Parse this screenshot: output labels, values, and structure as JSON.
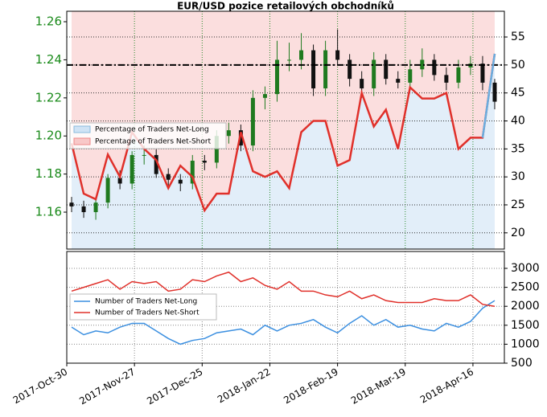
{
  "chart_data": [
    {
      "type": "candlestick",
      "title": "EUR/USD pozice retailových obchodníků",
      "x": [
        "2017-11-01",
        "2017-11-06",
        "2017-11-11",
        "2017-11-16",
        "2017-11-21",
        "2017-11-26",
        "2017-12-01",
        "2017-12-06",
        "2017-12-11",
        "2017-12-16",
        "2017-12-21",
        "2017-12-26",
        "2017-12-31",
        "2018-01-05",
        "2018-01-10",
        "2018-01-15",
        "2018-01-20",
        "2018-01-25",
        "2018-01-30",
        "2018-02-04",
        "2018-02-09",
        "2018-02-14",
        "2018-02-19",
        "2018-02-24",
        "2018-03-01",
        "2018-03-06",
        "2018-03-11",
        "2018-03-16",
        "2018-03-21",
        "2018-03-26",
        "2018-03-31",
        "2018-04-05",
        "2018-04-10",
        "2018-04-15",
        "2018-04-20",
        "2018-04-25"
      ],
      "open": [
        1.165,
        1.163,
        1.16,
        1.165,
        1.178,
        1.175,
        1.19,
        1.19,
        1.18,
        1.177,
        1.175,
        1.187,
        1.186,
        1.2,
        1.203,
        1.195,
        1.22,
        1.222,
        1.24,
        1.24,
        1.245,
        1.225,
        1.245,
        1.24,
        1.23,
        1.225,
        1.24,
        1.23,
        1.228,
        1.235,
        1.24,
        1.232,
        1.228,
        1.236,
        1.238,
        1.228
      ],
      "high": [
        1.168,
        1.166,
        1.167,
        1.18,
        1.182,
        1.192,
        1.195,
        1.193,
        1.183,
        1.18,
        1.19,
        1.19,
        1.203,
        1.207,
        1.206,
        1.224,
        1.226,
        1.25,
        1.249,
        1.254,
        1.248,
        1.25,
        1.256,
        1.243,
        1.234,
        1.244,
        1.243,
        1.234,
        1.24,
        1.246,
        1.243,
        1.236,
        1.24,
        1.242,
        1.242,
        1.23
      ],
      "low": [
        1.16,
        1.157,
        1.156,
        1.162,
        1.172,
        1.172,
        1.185,
        1.178,
        1.174,
        1.171,
        1.172,
        1.182,
        1.183,
        1.196,
        1.192,
        1.192,
        1.214,
        1.218,
        1.234,
        1.235,
        1.221,
        1.221,
        1.237,
        1.226,
        1.22,
        1.221,
        1.227,
        1.225,
        1.224,
        1.231,
        1.229,
        1.224,
        1.225,
        1.232,
        1.224,
        1.214
      ],
      "close": [
        1.163,
        1.16,
        1.165,
        1.178,
        1.175,
        1.19,
        1.19,
        1.18,
        1.177,
        1.175,
        1.187,
        1.186,
        1.2,
        1.203,
        1.195,
        1.22,
        1.222,
        1.24,
        1.24,
        1.245,
        1.225,
        1.245,
        1.24,
        1.23,
        1.225,
        1.24,
        1.23,
        1.228,
        1.235,
        1.24,
        1.232,
        1.228,
        1.236,
        1.238,
        1.228,
        1.218
      ],
      "up_color": "#1f7a1f",
      "down_color": "#111111",
      "ylim": [
        1.1406,
        1.2655
      ],
      "yticks": [
        1.16,
        1.18,
        {
          "value": 1.2,
          "label": "1.20"
        },
        1.22,
        1.24,
        1.26
      ],
      "y2lim": [
        17.1,
        59.6
      ],
      "y2ticks": [
        20,
        25,
        30,
        35,
        40,
        45,
        50,
        55
      ],
      "hline": 50,
      "series": [
        {
          "axis": "y2",
          "color_below": "#e0302a",
          "color_above": "#6aaee0",
          "values": [
            36,
            27,
            26,
            34,
            30,
            38,
            35,
            33,
            28,
            32,
            30,
            24,
            27,
            27,
            38,
            31,
            30,
            31,
            28,
            38,
            40,
            40,
            32,
            33,
            45,
            39,
            42,
            35,
            46,
            44,
            44,
            45,
            35,
            37,
            37,
            52
          ]
        }
      ],
      "legend": [
        {
          "label": "Percentage of Traders Net-Long",
          "color": "#cfe3f5"
        },
        {
          "label": "Percentage of Traders Net-Short",
          "color": "#f8c8c8"
        }
      ]
    },
    {
      "type": "line",
      "x": [
        "2017-11-01",
        "2017-11-06",
        "2017-11-11",
        "2017-11-16",
        "2017-11-21",
        "2017-11-26",
        "2017-12-01",
        "2017-12-06",
        "2017-12-11",
        "2017-12-16",
        "2017-12-21",
        "2017-12-26",
        "2017-12-31",
        "2018-01-05",
        "2018-01-10",
        "2018-01-15",
        "2018-01-20",
        "2018-01-25",
        "2018-01-30",
        "2018-02-04",
        "2018-02-09",
        "2018-02-14",
        "2018-02-19",
        "2018-02-24",
        "2018-03-01",
        "2018-03-06",
        "2018-03-11",
        "2018-03-16",
        "2018-03-21",
        "2018-03-26",
        "2018-03-31",
        "2018-04-05",
        "2018-04-10",
        "2018-04-15",
        "2018-04-20",
        "2018-04-25"
      ],
      "xlim": [
        "2017-10-30",
        "2018-04-29"
      ],
      "xticks": [
        {
          "value": "2017-10-30",
          "label": "2017-Oct-30"
        },
        {
          "value": "2017-11-27",
          "label": "2017-Nov-27"
        },
        {
          "value": "2017-12-25",
          "label": "2017-Dec-25"
        },
        {
          "value": "2018-01-22",
          "label": "2018-Jan-22"
        },
        {
          "value": "2018-02-19",
          "label": "2018-Feb-19"
        },
        {
          "value": "2018-03-19",
          "label": "2018-Mar-19"
        },
        {
          "value": "2018-04-16",
          "label": "2018-Apr-16"
        }
      ],
      "y2lim": [
        500,
        3445
      ],
      "y2ticks": [
        500,
        1000,
        1500,
        2000,
        2500,
        3000
      ],
      "series": [
        {
          "name": "Number of Traders Net-Long",
          "color": "#3b8fe0",
          "axis": "y2",
          "values": [
            1450,
            1250,
            1350,
            1300,
            1450,
            1550,
            1550,
            1350,
            1150,
            1000,
            1100,
            1150,
            1300,
            1350,
            1400,
            1250,
            1500,
            1350,
            1500,
            1550,
            1650,
            1450,
            1300,
            1550,
            1750,
            1500,
            1650,
            1450,
            1500,
            1400,
            1350,
            1550,
            1450,
            1600,
            1950,
            2150
          ]
        },
        {
          "name": "Number of Traders Net-Short",
          "color": "#e0302a",
          "axis": "y2",
          "values": [
            2400,
            2500,
            2600,
            2700,
            2450,
            2650,
            2600,
            2650,
            2400,
            2450,
            2700,
            2650,
            2800,
            2900,
            2650,
            2750,
            2550,
            2450,
            2650,
            2400,
            2400,
            2300,
            2250,
            2400,
            2200,
            2300,
            2150,
            2100,
            2100,
            2100,
            2200,
            2150,
            2150,
            2300,
            2050,
            2000
          ]
        }
      ]
    }
  ]
}
